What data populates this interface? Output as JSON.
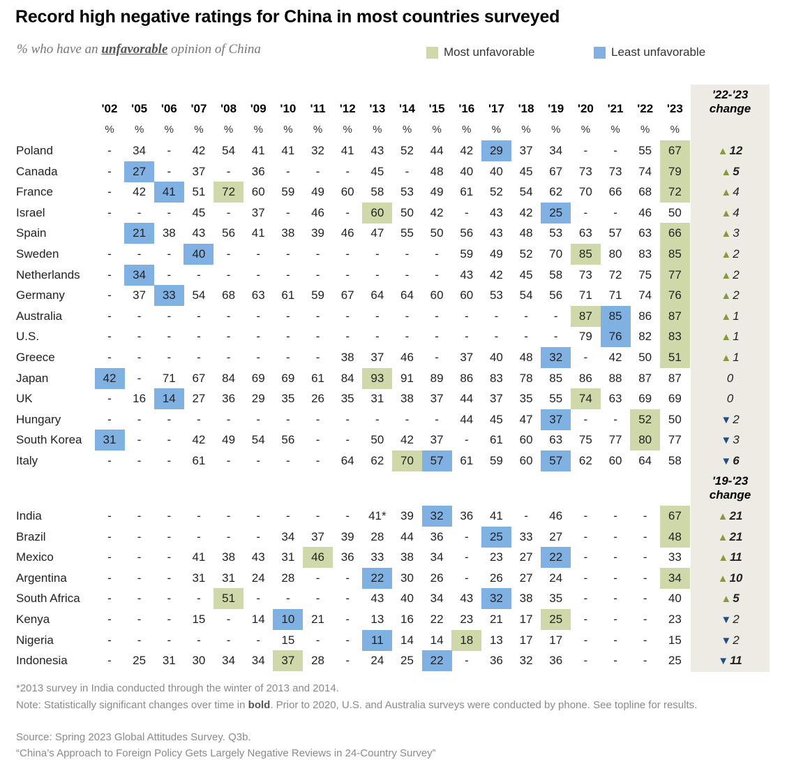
{
  "title": "Record high negative ratings for China in most countries surveyed",
  "subtitle": {
    "prefix": "% who have an ",
    "emphasis": "unfavorable",
    "suffix": " opinion of China"
  },
  "legend": {
    "most": {
      "label": "Most unfavorable",
      "color": "#cfd8a8"
    },
    "least": {
      "label": "Least unfavorable",
      "color": "#7fb1e3"
    }
  },
  "colors": {
    "most": "#cfd8a8",
    "least": "#7fb1e3",
    "up_arrow": "#8a9a3a",
    "down_arrow": "#1a4f8a",
    "change_column_bg": "#edebe4"
  },
  "chart_data": {
    "type": "table",
    "title": "Record high negative ratings for China in most countries surveyed",
    "subtitle": "% who have an unfavorable opinion of China",
    "years": [
      "'02",
      "'05",
      "'06",
      "'07",
      "'08",
      "'09",
      "'10",
      "'11",
      "'12",
      "'13",
      "'14",
      "'15",
      "'16",
      "'17",
      "'18",
      "'19",
      "'20",
      "'21",
      "'22",
      "'23"
    ],
    "unit_label": "%",
    "change_headers": {
      "group1": [
        "'22-'23",
        "change"
      ],
      "group2": [
        "'19-'23",
        "change"
      ]
    },
    "groups": [
      {
        "change_header": "'22-'23 change",
        "rows": [
          {
            "country": "Poland",
            "values": [
              "-",
              "34",
              "-",
              "42",
              "54",
              "41",
              "41",
              "32",
              "41",
              "43",
              "52",
              "44",
              "42",
              "29",
              "37",
              "34",
              "-",
              "-",
              "55",
              "67"
            ],
            "most": [
              19
            ],
            "least": [
              13
            ],
            "change": {
              "dir": "up",
              "value": "12",
              "bold": true
            }
          },
          {
            "country": "Canada",
            "values": [
              "-",
              "27",
              "-",
              "37",
              "-",
              "36",
              "-",
              "-",
              "-",
              "45",
              "-",
              "48",
              "40",
              "40",
              "45",
              "67",
              "73",
              "73",
              "74",
              "79"
            ],
            "most": [
              19
            ],
            "least": [
              1
            ],
            "change": {
              "dir": "up",
              "value": "5",
              "bold": true
            }
          },
          {
            "country": "France",
            "values": [
              "-",
              "42",
              "41",
              "51",
              "72",
              "60",
              "59",
              "49",
              "60",
              "58",
              "53",
              "49",
              "61",
              "52",
              "54",
              "62",
              "70",
              "66",
              "68",
              "72"
            ],
            "most": [
              4,
              19
            ],
            "least": [
              2
            ],
            "change": {
              "dir": "up",
              "value": "4",
              "bold": false
            }
          },
          {
            "country": "Israel",
            "values": [
              "-",
              "-",
              "-",
              "45",
              "-",
              "37",
              "-",
              "46",
              "-",
              "60",
              "50",
              "42",
              "-",
              "43",
              "42",
              "25",
              "-",
              "-",
              "46",
              "50"
            ],
            "most": [
              9
            ],
            "least": [
              15
            ],
            "change": {
              "dir": "up",
              "value": "4",
              "bold": false
            }
          },
          {
            "country": "Spain",
            "values": [
              "",
              "21",
              "38",
              "43",
              "56",
              "41",
              "38",
              "39",
              "46",
              "47",
              "55",
              "50",
              "56",
              "43",
              "48",
              "53",
              "63",
              "57",
              "63",
              "66"
            ],
            "most": [
              19
            ],
            "least": [
              1
            ],
            "change": {
              "dir": "up",
              "value": "3",
              "bold": false
            }
          },
          {
            "country": "Sweden",
            "values": [
              "-",
              "-",
              "-",
              "40",
              "-",
              "-",
              "-",
              "-",
              "-",
              "-",
              "-",
              "-",
              "59",
              "49",
              "52",
              "70",
              "85",
              "80",
              "83",
              "85"
            ],
            "most": [
              16,
              19
            ],
            "least": [
              3
            ],
            "change": {
              "dir": "up",
              "value": "2",
              "bold": false
            }
          },
          {
            "country": "Netherlands",
            "values": [
              "-",
              "34",
              "-",
              "-",
              "-",
              "-",
              "-",
              "-",
              "-",
              "-",
              "-",
              "-",
              "43",
              "42",
              "45",
              "58",
              "73",
              "72",
              "75",
              "77"
            ],
            "most": [
              19
            ],
            "least": [
              1
            ],
            "change": {
              "dir": "up",
              "value": "2",
              "bold": false
            }
          },
          {
            "country": "Germany",
            "values": [
              "-",
              "37",
              "33",
              "54",
              "68",
              "63",
              "61",
              "59",
              "67",
              "64",
              "64",
              "60",
              "60",
              "53",
              "54",
              "56",
              "71",
              "71",
              "74",
              "76"
            ],
            "most": [
              19
            ],
            "least": [
              2
            ],
            "change": {
              "dir": "up",
              "value": "2",
              "bold": false
            }
          },
          {
            "country": "Australia",
            "values": [
              "-",
              "-",
              "-",
              "-",
              "-",
              "-",
              "-",
              "-",
              "-",
              "-",
              "-",
              "-",
              "-",
              "-",
              "-",
              "-",
              "87",
              "85",
              "86",
              "87"
            ],
            "most": [
              16,
              19
            ],
            "least": [
              17
            ],
            "change": {
              "dir": "up",
              "value": "1",
              "bold": false
            }
          },
          {
            "country": "U.S.",
            "values": [
              "-",
              "-",
              "-",
              "-",
              "-",
              "-",
              "-",
              "-",
              "-",
              "-",
              "-",
              "-",
              "-",
              "-",
              "-",
              "-",
              "79",
              "76",
              "82",
              "83"
            ],
            "most": [
              19
            ],
            "least": [
              17
            ],
            "change": {
              "dir": "up",
              "value": "1",
              "bold": false
            }
          },
          {
            "country": "Greece",
            "values": [
              "-",
              "-",
              "-",
              "-",
              "-",
              "-",
              "-",
              "-",
              "38",
              "37",
              "46",
              "-",
              "37",
              "40",
              "48",
              "32",
              "-",
              "42",
              "50",
              "51"
            ],
            "most": [
              19
            ],
            "least": [
              15
            ],
            "change": {
              "dir": "up",
              "value": "1",
              "bold": false
            }
          },
          {
            "country": "Japan",
            "values": [
              "42",
              "-",
              "71",
              "67",
              "84",
              "69",
              "69",
              "61",
              "84",
              "93",
              "91",
              "89",
              "86",
              "83",
              "78",
              "85",
              "86",
              "88",
              "87",
              "87"
            ],
            "most": [
              9
            ],
            "least": [
              0
            ],
            "change": {
              "dir": "none",
              "value": "0",
              "bold": false
            }
          },
          {
            "country": "UK",
            "values": [
              "-",
              "16",
              "14",
              "27",
              "36",
              "29",
              "35",
              "26",
              "35",
              "31",
              "38",
              "37",
              "44",
              "37",
              "35",
              "55",
              "74",
              "63",
              "69",
              "69"
            ],
            "most": [
              16
            ],
            "least": [
              2
            ],
            "change": {
              "dir": "none",
              "value": "0",
              "bold": false
            }
          },
          {
            "country": "Hungary",
            "values": [
              "-",
              "-",
              "-",
              "-",
              "-",
              "-",
              "-",
              "-",
              "-",
              "-",
              "-",
              "-",
              "44",
              "45",
              "47",
              "37",
              "-",
              "-",
              "52",
              "50"
            ],
            "most": [
              18
            ],
            "least": [
              15
            ],
            "change": {
              "dir": "down",
              "value": "2",
              "bold": false
            }
          },
          {
            "country": "South Korea",
            "values": [
              "31",
              "-",
              "-",
              "42",
              "49",
              "54",
              "56",
              "-",
              "-",
              "50",
              "42",
              "37",
              "-",
              "61",
              "60",
              "63",
              "75",
              "77",
              "80",
              "77"
            ],
            "most": [
              18
            ],
            "least": [
              0
            ],
            "change": {
              "dir": "down",
              "value": "3",
              "bold": false
            }
          },
          {
            "country": "Italy",
            "values": [
              "-",
              "-",
              "-",
              "61",
              "-",
              "-",
              "-",
              "-",
              "64",
              "62",
              "70",
              "57",
              "61",
              "59",
              "60",
              "57",
              "62",
              "60",
              "64",
              "58"
            ],
            "most": [
              10
            ],
            "least": [
              11,
              15
            ],
            "change": {
              "dir": "down",
              "value": "6",
              "bold": true
            }
          }
        ]
      },
      {
        "change_header": "'19-'23 change",
        "rows": [
          {
            "country": "India",
            "values": [
              "-",
              "-",
              "-",
              "-",
              "-",
              "-",
              "-",
              "-",
              "-",
              "41*",
              "39",
              "32",
              "36",
              "41",
              "-",
              "46",
              "-",
              "-",
              "-",
              "67"
            ],
            "most": [
              19
            ],
            "least": [
              11
            ],
            "change": {
              "dir": "up",
              "value": "21",
              "bold": true
            }
          },
          {
            "country": "Brazil",
            "values": [
              "-",
              "-",
              "-",
              "-",
              "-",
              "-",
              "34",
              "37",
              "39",
              "28",
              "44",
              "36",
              "-",
              "25",
              "33",
              "27",
              "-",
              "-",
              "-",
              "48"
            ],
            "most": [
              19
            ],
            "least": [
              13
            ],
            "change": {
              "dir": "up",
              "value": "21",
              "bold": true
            }
          },
          {
            "country": "Mexico",
            "values": [
              "-",
              "-",
              "-",
              "41",
              "38",
              "43",
              "31",
              "46",
              "36",
              "33",
              "38",
              "34",
              "-",
              "23",
              "27",
              "22",
              "-",
              "-",
              "-",
              "33"
            ],
            "most": [
              7
            ],
            "least": [
              15
            ],
            "change": {
              "dir": "up",
              "value": "11",
              "bold": true
            }
          },
          {
            "country": "Argentina",
            "values": [
              "-",
              "-",
              "-",
              "31",
              "31",
              "24",
              "28",
              "-",
              "-",
              "22",
              "30",
              "26",
              "-",
              "26",
              "27",
              "24",
              "-",
              "-",
              "-",
              "34"
            ],
            "most": [
              19
            ],
            "least": [
              9
            ],
            "change": {
              "dir": "up",
              "value": "10",
              "bold": true
            }
          },
          {
            "country": "South Africa",
            "values": [
              "-",
              "-",
              "-",
              "-",
              "51",
              "-",
              "-",
              "-",
              "-",
              "43",
              "40",
              "34",
              "43",
              "32",
              "38",
              "35",
              "-",
              "-",
              "-",
              "40"
            ],
            "most": [
              4
            ],
            "least": [
              13
            ],
            "change": {
              "dir": "up",
              "value": "5",
              "bold": true
            }
          },
          {
            "country": "Kenya",
            "values": [
              "-",
              "-",
              "-",
              "15",
              "-",
              "14",
              "10",
              "21",
              "-",
              "13",
              "16",
              "22",
              "23",
              "21",
              "17",
              "25",
              "-",
              "-",
              "-",
              "23"
            ],
            "most": [
              15
            ],
            "least": [
              6
            ],
            "change": {
              "dir": "down",
              "value": "2",
              "bold": false
            }
          },
          {
            "country": "Nigeria",
            "values": [
              "-",
              "-",
              "-",
              "-",
              "-",
              "-",
              "15",
              "-",
              "-",
              "11",
              "14",
              "14",
              "18",
              "13",
              "17",
              "17",
              "-",
              "-",
              "-",
              "15"
            ],
            "most": [
              12
            ],
            "least": [
              9
            ],
            "change": {
              "dir": "down",
              "value": "2",
              "bold": false
            }
          },
          {
            "country": "Indonesia",
            "values": [
              "-",
              "25",
              "31",
              "30",
              "34",
              "34",
              "37",
              "28",
              "-",
              "24",
              "25",
              "22",
              "-",
              "36",
              "32",
              "36",
              "-",
              "-",
              "-",
              "25"
            ],
            "most": [
              6
            ],
            "least": [
              11
            ],
            "change": {
              "dir": "down",
              "value": "11",
              "bold": true
            }
          }
        ]
      }
    ]
  },
  "footnotes": {
    "asterisk": "*2013 survey in India conducted through the winter of 2013 and 2014.",
    "note_prefix": "Note: Statistically significant changes over time in ",
    "note_bold": "bold",
    "note_suffix": ". Prior to 2020, U.S. and Australia surveys were conducted by phone. See topline for results.",
    "source": "Source: Spring 2023 Global Attitudes Survey. Q3b.",
    "report": "“China’s Approach to Foreign Policy Gets Largely Negative Reviews in 24-Country Survey”"
  }
}
